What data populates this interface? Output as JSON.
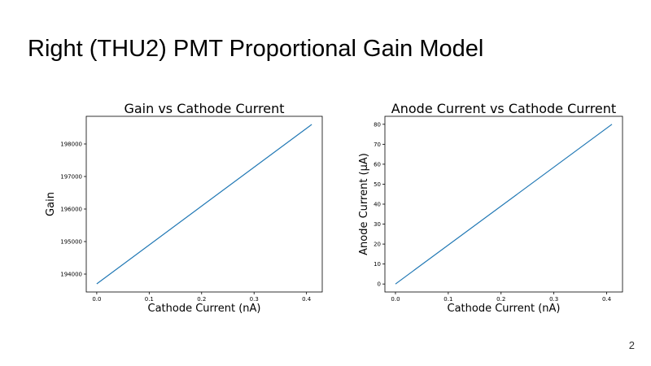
{
  "slide": {
    "title": "Right (THU2) PMT Proportional Gain Model",
    "page_number": "2"
  },
  "colors": {
    "series": "#1f77b4"
  },
  "chart_data": [
    {
      "type": "line",
      "title": "Gain vs Cathode Current",
      "xlabel": "Cathode Current (nA)",
      "ylabel": "Gain",
      "xlim": [
        -0.02,
        0.43
      ],
      "ylim": [
        193450,
        198850
      ],
      "x_ticks": [
        0.0,
        0.1,
        0.2,
        0.3,
        0.4
      ],
      "x_tick_labels": [
        "0.0",
        "0.1",
        "0.2",
        "0.3",
        "0.4"
      ],
      "y_ticks": [
        194000,
        195000,
        196000,
        197000,
        198000
      ],
      "y_tick_labels": [
        "194000",
        "195000",
        "196000",
        "197000",
        "198000"
      ],
      "grid": false,
      "series": [
        {
          "x": [
            0.0,
            0.41
          ],
          "y": [
            193700,
            198600
          ]
        }
      ]
    },
    {
      "type": "line",
      "title": "Anode Current vs Cathode Current",
      "xlabel": "Cathode Current (nA)",
      "ylabel": "Anode Current (μA)",
      "xlim": [
        -0.02,
        0.43
      ],
      "ylim": [
        -4,
        84
      ],
      "x_ticks": [
        0.0,
        0.1,
        0.2,
        0.3,
        0.4
      ],
      "x_tick_labels": [
        "0.0",
        "0.1",
        "0.2",
        "0.3",
        "0.4"
      ],
      "y_ticks": [
        0,
        10,
        20,
        30,
        40,
        50,
        60,
        70,
        80
      ],
      "y_tick_labels": [
        "0",
        "10",
        "20",
        "30",
        "40",
        "50",
        "60",
        "70",
        "80"
      ],
      "grid": false,
      "series": [
        {
          "x": [
            0.0,
            0.41
          ],
          "y": [
            0,
            80
          ]
        }
      ]
    }
  ]
}
